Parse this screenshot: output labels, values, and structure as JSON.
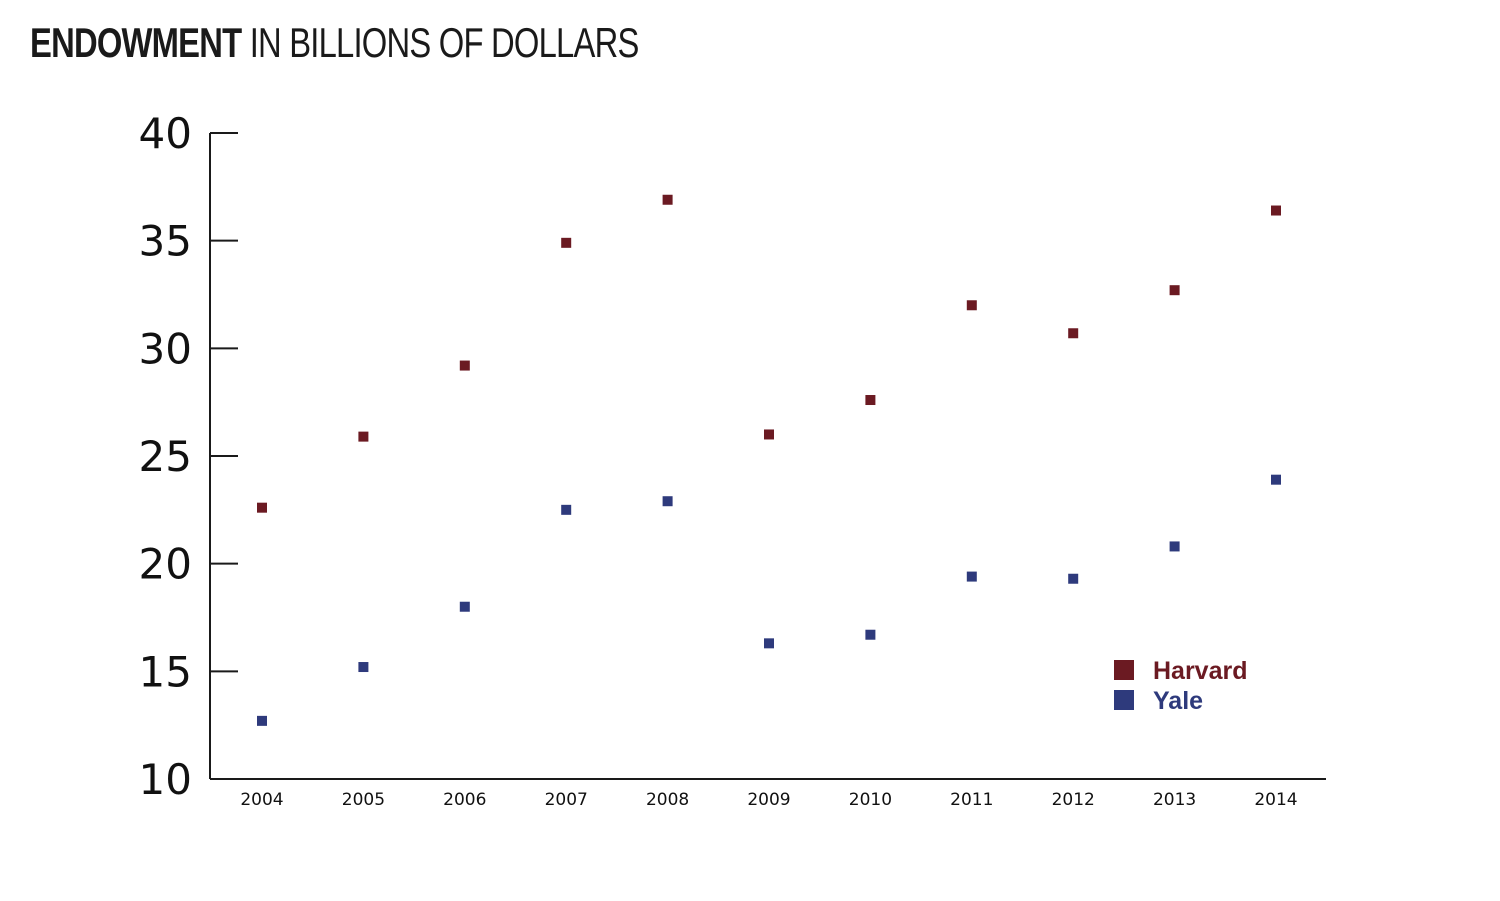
{
  "title": {
    "bold": "ENDOWMENT",
    "rest": "IN BILLIONS OF DOLLARS"
  },
  "chart_data": {
    "type": "scatter",
    "title": "ENDOWMENT IN BILLIONS OF DOLLARS",
    "xlabel": "",
    "ylabel": "",
    "x": [
      "2004",
      "2005",
      "2006",
      "2007",
      "2008",
      "2009",
      "2010",
      "2011",
      "2012",
      "2013",
      "2014"
    ],
    "ylim": [
      10,
      40
    ],
    "yticks": [
      "10",
      "15",
      "20",
      "25",
      "30",
      "35",
      "40"
    ],
    "grid": false,
    "legend_placement": "bottom-right",
    "series": [
      {
        "name": "Harvard",
        "color": "#6b1a22",
        "values": [
          22.6,
          25.9,
          29.2,
          34.9,
          36.9,
          26.0,
          27.6,
          32.0,
          30.7,
          32.7,
          36.4
        ]
      },
      {
        "name": "Yale",
        "color": "#2e3a7c",
        "values": [
          12.7,
          15.2,
          18.0,
          22.5,
          22.9,
          16.3,
          16.7,
          19.4,
          19.3,
          20.8,
          23.9
        ]
      }
    ]
  }
}
